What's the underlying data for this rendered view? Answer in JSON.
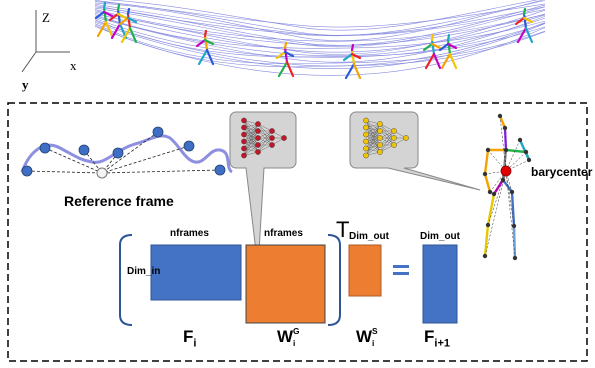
{
  "axes": {
    "z": "Z",
    "x": "x",
    "y": "y"
  },
  "reference_frame_label": "Reference frame",
  "barycenter_label": "barycenter",
  "matrix_labels": {
    "nframes_left": "nframes",
    "nframes_right": "nframes",
    "dim_in": "Dim_in",
    "dim_out_top": "Dim_out",
    "transpose": "T",
    "dim_out_right": "Dim_out"
  },
  "equation_labels": {
    "f_i": {
      "main": "F",
      "sub": "i"
    },
    "w_g": {
      "main": "W",
      "sub": "i",
      "sup": "G"
    },
    "w_s": {
      "main": "W",
      "sub": "i",
      "sup": "S"
    },
    "f_next": {
      "main": "F",
      "sub": "i+1"
    }
  },
  "equals_sign": "=",
  "colors": {
    "blue_matrix": "#4472c4",
    "orange_matrix": "#ed7d31",
    "trajectory": "#6a6fd8",
    "node_blue": "#3e6fc4",
    "network_red": "#c0172a",
    "network_yellow": "#f0c400",
    "bubble_gray": "#d4d4d4"
  }
}
